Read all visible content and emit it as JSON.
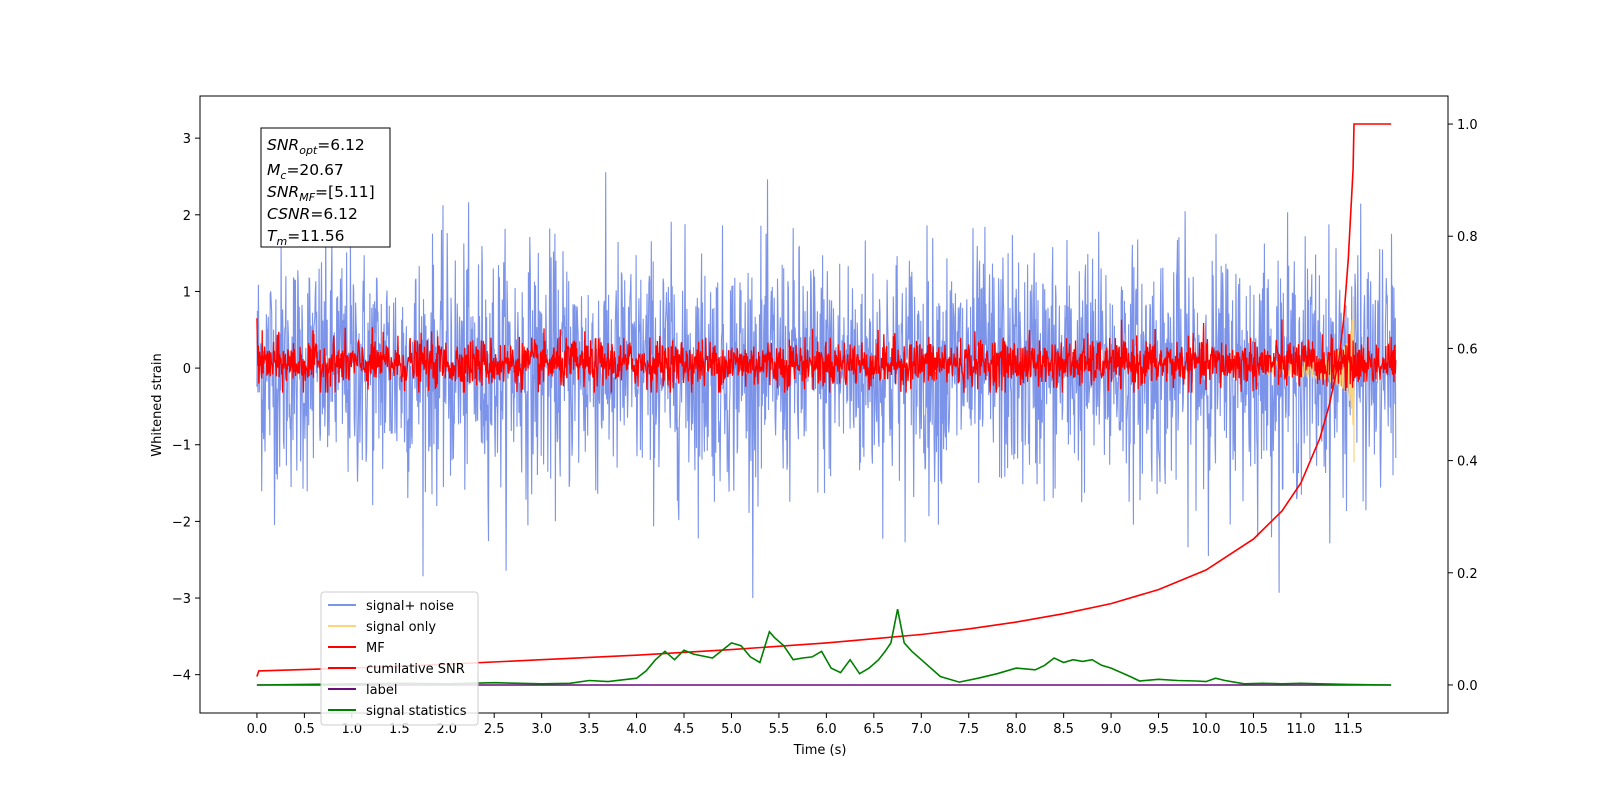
{
  "chart_data": {
    "type": "line",
    "title": "",
    "xlabel": "Time (s)",
    "ylabel": "Whitened strain",
    "y2label": "",
    "xlim": [
      -0.6,
      12.55
    ],
    "ylim": [
      -4.5,
      3.55
    ],
    "y2lim": [
      -0.05,
      1.05
    ],
    "x_ticks": [
      "0.0",
      "0.5",
      "1.0",
      "1.5",
      "2.0",
      "2.5",
      "3.0",
      "3.5",
      "4.0",
      "4.5",
      "5.0",
      "5.5",
      "6.0",
      "6.5",
      "7.0",
      "7.5",
      "8.0",
      "8.5",
      "9.0",
      "9.5",
      "10.0",
      "10.5",
      "11.0",
      "11.5"
    ],
    "y_ticks": [
      "3",
      "2",
      "1",
      "0",
      "−1",
      "−2",
      "−3",
      "−4"
    ],
    "y2_ticks": [
      "1.0",
      "0.8",
      "0.6",
      "0.4",
      "0.2",
      "0.0"
    ],
    "grid": false,
    "legend_position": "lower-left",
    "annotation": {
      "snr_opt": {
        "symbol": "SNR",
        "sub": "opt",
        "value": "=6.12"
      },
      "mc": {
        "symbol": "M",
        "sub": "c",
        "value": "=20.67"
      },
      "snr_mf": {
        "symbol": "SNR",
        "sub": "MF",
        "value": "=[5.11]"
      },
      "csnr": {
        "symbol": "CSNR",
        "sub": "",
        "value": "=6.12"
      },
      "tm": {
        "symbol": "T",
        "sub": "m",
        "value": "=11.56"
      }
    },
    "series": [
      {
        "name": "signal+ noise",
        "color": "#7b93e8",
        "axis": "left",
        "description": "noise, amplitude ~ ±1.3 with spikes up to ±3.1, from 0 to 12.0 s"
      },
      {
        "name": "signal only",
        "color": "#fcd47a",
        "axis": "left",
        "description": "chirp growing near 11.0-11.56 s, peak ~ ±1.5"
      },
      {
        "name": "MF",
        "color": "#ff0000",
        "axis": "left",
        "description": "matched filter output, fluctuates ~ -0.3 to 0.6"
      },
      {
        "name": "cumilative SNR",
        "color": "#ff0000",
        "axis": "right",
        "x": [
          0.0,
          0.02,
          1.0,
          2.0,
          3.0,
          4.0,
          5.0,
          6.0,
          7.0,
          7.5,
          8.0,
          8.5,
          9.0,
          9.5,
          10.0,
          10.5,
          10.8,
          11.0,
          11.2,
          11.3,
          11.4,
          11.45,
          11.5,
          11.55,
          11.56,
          11.95
        ],
        "y": [
          0.015,
          0.025,
          0.03,
          0.037,
          0.045,
          0.053,
          0.063,
          0.075,
          0.09,
          0.1,
          0.112,
          0.127,
          0.145,
          0.17,
          0.205,
          0.26,
          0.31,
          0.36,
          0.44,
          0.5,
          0.58,
          0.65,
          0.76,
          0.92,
          1.0,
          1.0
        ]
      },
      {
        "name": "label",
        "color": "#6a0c7a",
        "axis": "right",
        "x": [
          0.0,
          11.95
        ],
        "y": [
          0.0,
          0.0
        ]
      },
      {
        "name": "signal statistics",
        "color": "#008000",
        "axis": "right",
        "x": [
          0.0,
          0.5,
          1.0,
          1.5,
          2.0,
          2.5,
          3.0,
          3.3,
          3.5,
          3.7,
          3.9,
          4.0,
          4.1,
          4.2,
          4.3,
          4.4,
          4.5,
          4.6,
          4.8,
          5.0,
          5.1,
          5.2,
          5.3,
          5.4,
          5.45,
          5.55,
          5.65,
          5.75,
          5.85,
          5.95,
          6.05,
          6.15,
          6.25,
          6.35,
          6.45,
          6.55,
          6.62,
          6.68,
          6.75,
          6.82,
          6.9,
          7.0,
          7.2,
          7.4,
          7.6,
          7.8,
          8.0,
          8.2,
          8.3,
          8.4,
          8.5,
          8.6,
          8.7,
          8.8,
          8.9,
          9.0,
          9.2,
          9.3,
          9.5,
          9.7,
          9.9,
          10.0,
          10.1,
          10.2,
          10.4,
          10.6,
          10.8,
          11.0,
          11.2,
          11.5,
          11.95
        ],
        "y": [
          0.0,
          0.001,
          0.002,
          0.003,
          0.002,
          0.004,
          0.002,
          0.003,
          0.008,
          0.006,
          0.01,
          0.012,
          0.025,
          0.045,
          0.06,
          0.045,
          0.062,
          0.055,
          0.048,
          0.075,
          0.07,
          0.05,
          0.04,
          0.095,
          0.085,
          0.07,
          0.045,
          0.048,
          0.05,
          0.06,
          0.03,
          0.022,
          0.045,
          0.02,
          0.03,
          0.045,
          0.06,
          0.075,
          0.135,
          0.075,
          0.06,
          0.045,
          0.015,
          0.005,
          0.012,
          0.02,
          0.03,
          0.027,
          0.035,
          0.048,
          0.04,
          0.045,
          0.042,
          0.045,
          0.035,
          0.03,
          0.015,
          0.007,
          0.01,
          0.008,
          0.007,
          0.006,
          0.012,
          0.008,
          0.002,
          0.003,
          0.002,
          0.003,
          0.002,
          0.001,
          0.0
        ]
      }
    ]
  }
}
